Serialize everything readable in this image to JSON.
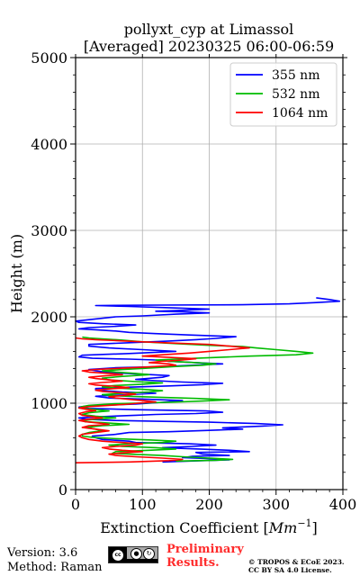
{
  "chart_data": {
    "type": "line",
    "title": "pollyxt_cyp at Limassol",
    "subtitle": "[Averaged] 20230325 06:00-06:59",
    "xlabel": "Extinction Coefficient [Mm⁻¹]",
    "xlabel_main": "Extinction Coefficient [",
    "xlabel_unit": "Mm",
    "xlabel_exp": "−1",
    "xlabel_close": "]",
    "ylabel": "Height (m)",
    "xlim": [
      0,
      400
    ],
    "ylim": [
      0,
      5000
    ],
    "xticks": [
      "0",
      "100",
      "200",
      "300",
      "400"
    ],
    "xtick_values": [
      0,
      100,
      200,
      300,
      400
    ],
    "yticks": [
      "0",
      "1000",
      "2000",
      "3000",
      "4000",
      "5000"
    ],
    "ytick_values": [
      0,
      1000,
      2000,
      3000,
      4000,
      5000
    ],
    "grid": true,
    "legend_position": "top-right",
    "series": [
      {
        "name": "355 nm",
        "color": "#0000ff",
        "points": [
          [
            130,
            320
          ],
          [
            170,
            330
          ],
          [
            230,
            345
          ],
          [
            195,
            360
          ],
          [
            160,
            370
          ],
          [
            175,
            385
          ],
          [
            230,
            395
          ],
          [
            190,
            410
          ],
          [
            180,
            430
          ],
          [
            260,
            440
          ],
          [
            230,
            455
          ],
          [
            185,
            470
          ],
          [
            130,
            485
          ],
          [
            175,
            500
          ],
          [
            210,
            515
          ],
          [
            170,
            530
          ],
          [
            90,
            545
          ],
          [
            80,
            560
          ],
          [
            40,
            580
          ],
          [
            30,
            600
          ],
          [
            25,
            620
          ],
          [
            60,
            640
          ],
          [
            80,
            660
          ],
          [
            140,
            670
          ],
          [
            200,
            685
          ],
          [
            250,
            700
          ],
          [
            220,
            715
          ],
          [
            280,
            735
          ],
          [
            310,
            750
          ],
          [
            270,
            765
          ],
          [
            200,
            780
          ],
          [
            130,
            790
          ],
          [
            60,
            800
          ],
          [
            15,
            815
          ],
          [
            5,
            830
          ],
          [
            40,
            845
          ],
          [
            90,
            860
          ],
          [
            120,
            870
          ],
          [
            180,
            880
          ],
          [
            220,
            895
          ],
          [
            195,
            910
          ],
          [
            90,
            925
          ],
          [
            20,
            940
          ],
          [
            5,
            955
          ],
          [
            20,
            970
          ],
          [
            90,
            990
          ],
          [
            130,
            1010
          ],
          [
            160,
            1030
          ],
          [
            110,
            1045
          ],
          [
            50,
            1060
          ],
          [
            30,
            1080
          ],
          [
            80,
            1100
          ],
          [
            120,
            1115
          ],
          [
            70,
            1130
          ],
          [
            30,
            1150
          ],
          [
            30,
            1170
          ],
          [
            80,
            1185
          ],
          [
            140,
            1200
          ],
          [
            190,
            1215
          ],
          [
            220,
            1230
          ],
          [
            160,
            1245
          ],
          [
            120,
            1260
          ],
          [
            90,
            1275
          ],
          [
            130,
            1300
          ],
          [
            140,
            1320
          ],
          [
            90,
            1340
          ],
          [
            50,
            1355
          ],
          [
            30,
            1375
          ],
          [
            20,
            1390
          ],
          [
            60,
            1410
          ],
          [
            110,
            1420
          ],
          [
            150,
            1430
          ],
          [
            190,
            1445
          ],
          [
            220,
            1455
          ],
          [
            180,
            1470
          ],
          [
            140,
            1485
          ],
          [
            120,
            1500
          ],
          [
            80,
            1510
          ],
          [
            25,
            1520
          ],
          [
            5,
            1535
          ],
          [
            10,
            1555
          ],
          [
            80,
            1575
          ],
          [
            150,
            1600
          ],
          [
            100,
            1620
          ],
          [
            50,
            1640
          ],
          [
            20,
            1660
          ],
          [
            20,
            1680
          ],
          [
            80,
            1700
          ],
          [
            140,
            1720
          ],
          [
            180,
            1735
          ],
          [
            210,
            1750
          ],
          [
            240,
            1770
          ],
          [
            170,
            1790
          ],
          [
            120,
            1805
          ],
          [
            80,
            1820
          ],
          [
            60,
            1835
          ],
          [
            30,
            1850
          ],
          [
            5,
            1860
          ],
          [
            20,
            1875
          ],
          [
            60,
            1890
          ],
          [
            90,
            1905
          ],
          [
            40,
            1920
          ],
          [
            5,
            1935
          ],
          [
            0,
            1950
          ],
          [
            60,
            2000
          ],
          [
            100,
            2010
          ],
          [
            150,
            2030
          ],
          [
            200,
            2045
          ],
          [
            170,
            2055
          ],
          [
            120,
            2065
          ],
          [
            160,
            2075
          ],
          [
            200,
            2090
          ],
          [
            140,
            2105
          ],
          [
            80,
            2120
          ],
          [
            30,
            2130
          ],
          [
            120,
            2135
          ],
          [
            250,
            2140
          ],
          [
            320,
            2150
          ],
          [
            360,
            2165
          ],
          [
            395,
            2180
          ],
          [
            380,
            2200
          ],
          [
            360,
            2220
          ]
        ]
      },
      {
        "name": "532 nm",
        "color": "#00bb00",
        "points": [
          [
            150,
            330
          ],
          [
            210,
            340
          ],
          [
            235,
            350
          ],
          [
            200,
            365
          ],
          [
            160,
            380
          ],
          [
            130,
            395
          ],
          [
            80,
            410
          ],
          [
            55,
            420
          ],
          [
            60,
            440
          ],
          [
            110,
            455
          ],
          [
            150,
            470
          ],
          [
            120,
            485
          ],
          [
            70,
            500
          ],
          [
            50,
            515
          ],
          [
            80,
            530
          ],
          [
            130,
            545
          ],
          [
            150,
            560
          ],
          [
            110,
            575
          ],
          [
            60,
            590
          ],
          [
            25,
            605
          ],
          [
            10,
            620
          ],
          [
            10,
            640
          ],
          [
            20,
            660
          ],
          [
            40,
            680
          ],
          [
            30,
            700
          ],
          [
            15,
            720
          ],
          [
            40,
            740
          ],
          [
            80,
            755
          ],
          [
            50,
            770
          ],
          [
            15,
            785
          ],
          [
            10,
            800
          ],
          [
            30,
            815
          ],
          [
            60,
            830
          ],
          [
            30,
            850
          ],
          [
            10,
            870
          ],
          [
            20,
            890
          ],
          [
            50,
            910
          ],
          [
            25,
            930
          ],
          [
            5,
            945
          ],
          [
            10,
            960
          ],
          [
            20,
            975
          ],
          [
            60,
            995
          ],
          [
            140,
            1010
          ],
          [
            190,
            1025
          ],
          [
            230,
            1040
          ],
          [
            180,
            1055
          ],
          [
            120,
            1070
          ],
          [
            60,
            1085
          ],
          [
            40,
            1100
          ],
          [
            70,
            1115
          ],
          [
            110,
            1130
          ],
          [
            130,
            1145
          ],
          [
            100,
            1160
          ],
          [
            60,
            1175
          ],
          [
            40,
            1190
          ],
          [
            60,
            1205
          ],
          [
            100,
            1220
          ],
          [
            130,
            1235
          ],
          [
            90,
            1250
          ],
          [
            50,
            1270
          ],
          [
            40,
            1290
          ],
          [
            70,
            1310
          ],
          [
            110,
            1330
          ],
          [
            90,
            1345
          ],
          [
            60,
            1360
          ],
          [
            40,
            1375
          ],
          [
            70,
            1390
          ],
          [
            120,
            1410
          ],
          [
            150,
            1425
          ],
          [
            190,
            1440
          ],
          [
            210,
            1455
          ],
          [
            180,
            1470
          ],
          [
            140,
            1485
          ],
          [
            120,
            1500
          ],
          [
            180,
            1520
          ],
          [
            260,
            1545
          ],
          [
            330,
            1560
          ],
          [
            355,
            1580
          ],
          [
            330,
            1600
          ],
          [
            300,
            1620
          ],
          [
            270,
            1640
          ],
          [
            250,
            1655
          ],
          [
            200,
            1670
          ],
          [
            150,
            1690
          ],
          [
            100,
            1710
          ],
          [
            70,
            1730
          ],
          [
            40,
            1745
          ],
          [
            20,
            1755
          ],
          [
            10,
            1765
          ]
        ]
      },
      {
        "name": "1064 nm",
        "color": "#ff0000",
        "points": [
          [
            0,
            310
          ],
          [
            80,
            320
          ],
          [
            140,
            335
          ],
          [
            160,
            350
          ],
          [
            130,
            365
          ],
          [
            90,
            380
          ],
          [
            60,
            395
          ],
          [
            50,
            410
          ],
          [
            70,
            425
          ],
          [
            100,
            440
          ],
          [
            70,
            455
          ],
          [
            50,
            470
          ],
          [
            40,
            485
          ],
          [
            60,
            500
          ],
          [
            90,
            515
          ],
          [
            100,
            530
          ],
          [
            70,
            545
          ],
          [
            40,
            560
          ],
          [
            20,
            580
          ],
          [
            10,
            600
          ],
          [
            5,
            620
          ],
          [
            10,
            640
          ],
          [
            30,
            660
          ],
          [
            50,
            680
          ],
          [
            30,
            700
          ],
          [
            10,
            720
          ],
          [
            20,
            740
          ],
          [
            50,
            755
          ],
          [
            35,
            770
          ],
          [
            15,
            785
          ],
          [
            5,
            800
          ],
          [
            20,
            815
          ],
          [
            40,
            830
          ],
          [
            25,
            845
          ],
          [
            10,
            860
          ],
          [
            5,
            880
          ],
          [
            15,
            900
          ],
          [
            30,
            915
          ],
          [
            15,
            930
          ],
          [
            5,
            945
          ],
          [
            20,
            960
          ],
          [
            50,
            975
          ],
          [
            80,
            990
          ],
          [
            100,
            1005
          ],
          [
            120,
            1015
          ],
          [
            100,
            1030
          ],
          [
            80,
            1045
          ],
          [
            60,
            1060
          ],
          [
            50,
            1075
          ],
          [
            70,
            1090
          ],
          [
            90,
            1105
          ],
          [
            70,
            1120
          ],
          [
            40,
            1135
          ],
          [
            30,
            1150
          ],
          [
            50,
            1165
          ],
          [
            80,
            1180
          ],
          [
            60,
            1195
          ],
          [
            30,
            1210
          ],
          [
            20,
            1225
          ],
          [
            40,
            1240
          ],
          [
            70,
            1255
          ],
          [
            50,
            1270
          ],
          [
            30,
            1285
          ],
          [
            20,
            1300
          ],
          [
            40,
            1315
          ],
          [
            70,
            1330
          ],
          [
            50,
            1345
          ],
          [
            20,
            1360
          ],
          [
            10,
            1375
          ],
          [
            30,
            1390
          ],
          [
            70,
            1405
          ],
          [
            110,
            1420
          ],
          [
            150,
            1440
          ],
          [
            140,
            1455
          ],
          [
            110,
            1470
          ],
          [
            130,
            1485
          ],
          [
            160,
            1500
          ],
          [
            180,
            1515
          ],
          [
            140,
            1530
          ],
          [
            100,
            1545
          ],
          [
            130,
            1560
          ],
          [
            170,
            1580
          ],
          [
            200,
            1600
          ],
          [
            230,
            1620
          ],
          [
            260,
            1640
          ],
          [
            230,
            1660
          ],
          [
            200,
            1680
          ],
          [
            150,
            1695
          ],
          [
            100,
            1710
          ],
          [
            60,
            1725
          ],
          [
            30,
            1735
          ],
          [
            10,
            1745
          ],
          [
            0,
            1755
          ]
        ]
      }
    ]
  },
  "footer": {
    "version": "Version: 3.6",
    "method": "Method: Raman",
    "preliminary_line1": "Preliminary",
    "preliminary_line2": "Results.",
    "copyright_line1": "© TROPOS & ECoE 2023.",
    "copyright_line2": "CC BY SA 4.0 License.",
    "cc_badge": {
      "icon": "creative-commons-by-sa-icon",
      "cc_text": "cc",
      "by_text": "BY",
      "sa_text": "SA"
    }
  }
}
